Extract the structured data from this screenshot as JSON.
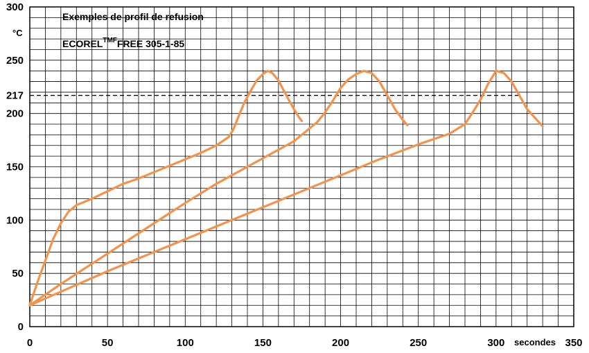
{
  "chart_data": {
    "type": "line",
    "title": "Exemples de profil de refusion",
    "subtitle": {
      "prefix": "ECOREL",
      "superscript": "TMF",
      "suffix": "FREE  305-1-85"
    },
    "ylabel": "°C",
    "xlabel": "secondes",
    "xlim": [
      0,
      350
    ],
    "ylim": [
      0,
      300
    ],
    "x_ticks": [
      0,
      50,
      100,
      150,
      200,
      250,
      300,
      350
    ],
    "y_ticks": [
      0,
      50,
      100,
      150,
      200,
      250,
      300
    ],
    "y_extra_tick": 217,
    "grid": true,
    "grid_x_step": 10,
    "grid_y_step": 10,
    "reference_line": {
      "y": 217,
      "x_range": [
        0,
        315
      ],
      "style": "dashed",
      "color": "#000000"
    },
    "line_color": "#f4924a",
    "series": [
      {
        "points": [
          [
            0,
            20
          ],
          [
            5,
            42
          ],
          [
            10,
            62
          ],
          [
            15,
            82
          ],
          [
            20,
            97
          ],
          [
            25,
            108
          ],
          [
            30,
            114
          ],
          [
            40,
            120
          ],
          [
            50,
            127
          ],
          [
            60,
            134
          ],
          [
            70,
            139
          ],
          [
            80,
            145
          ],
          [
            90,
            151
          ],
          [
            100,
            157
          ],
          [
            110,
            163
          ],
          [
            120,
            170
          ],
          [
            128,
            178
          ],
          [
            131,
            185
          ],
          [
            134,
            196
          ],
          [
            138,
            210
          ],
          [
            142,
            221
          ],
          [
            146,
            231
          ],
          [
            150,
            237
          ],
          [
            153,
            240
          ],
          [
            156,
            238
          ],
          [
            160,
            231
          ],
          [
            165,
            217
          ],
          [
            170,
            204
          ],
          [
            173,
            197
          ],
          [
            175,
            193
          ]
        ]
      },
      {
        "points": [
          [
            0,
            20
          ],
          [
            20,
            40
          ],
          [
            40,
            59
          ],
          [
            60,
            78
          ],
          [
            80,
            97
          ],
          [
            100,
            116
          ],
          [
            120,
            134
          ],
          [
            140,
            150
          ],
          [
            160,
            166
          ],
          [
            170,
            174
          ],
          [
            180,
            186
          ],
          [
            185,
            192
          ],
          [
            190,
            201
          ],
          [
            195,
            212
          ],
          [
            200,
            224
          ],
          [
            205,
            232
          ],
          [
            210,
            237
          ],
          [
            215,
            240
          ],
          [
            220,
            238
          ],
          [
            225,
            230
          ],
          [
            230,
            217
          ],
          [
            235,
            204
          ],
          [
            240,
            194
          ],
          [
            243,
            189
          ]
        ]
      },
      {
        "points": [
          [
            0,
            20
          ],
          [
            25,
            36
          ],
          [
            50,
            52
          ],
          [
            75,
            67
          ],
          [
            100,
            82
          ],
          [
            125,
            97
          ],
          [
            150,
            112
          ],
          [
            175,
            127
          ],
          [
            200,
            142
          ],
          [
            225,
            157
          ],
          [
            250,
            171
          ],
          [
            270,
            181
          ],
          [
            280,
            190
          ],
          [
            285,
            201
          ],
          [
            290,
            213
          ],
          [
            295,
            228
          ],
          [
            300,
            240
          ],
          [
            305,
            238
          ],
          [
            310,
            230
          ],
          [
            315,
            217
          ],
          [
            320,
            204
          ],
          [
            325,
            196
          ],
          [
            330,
            188
          ]
        ]
      }
    ]
  }
}
